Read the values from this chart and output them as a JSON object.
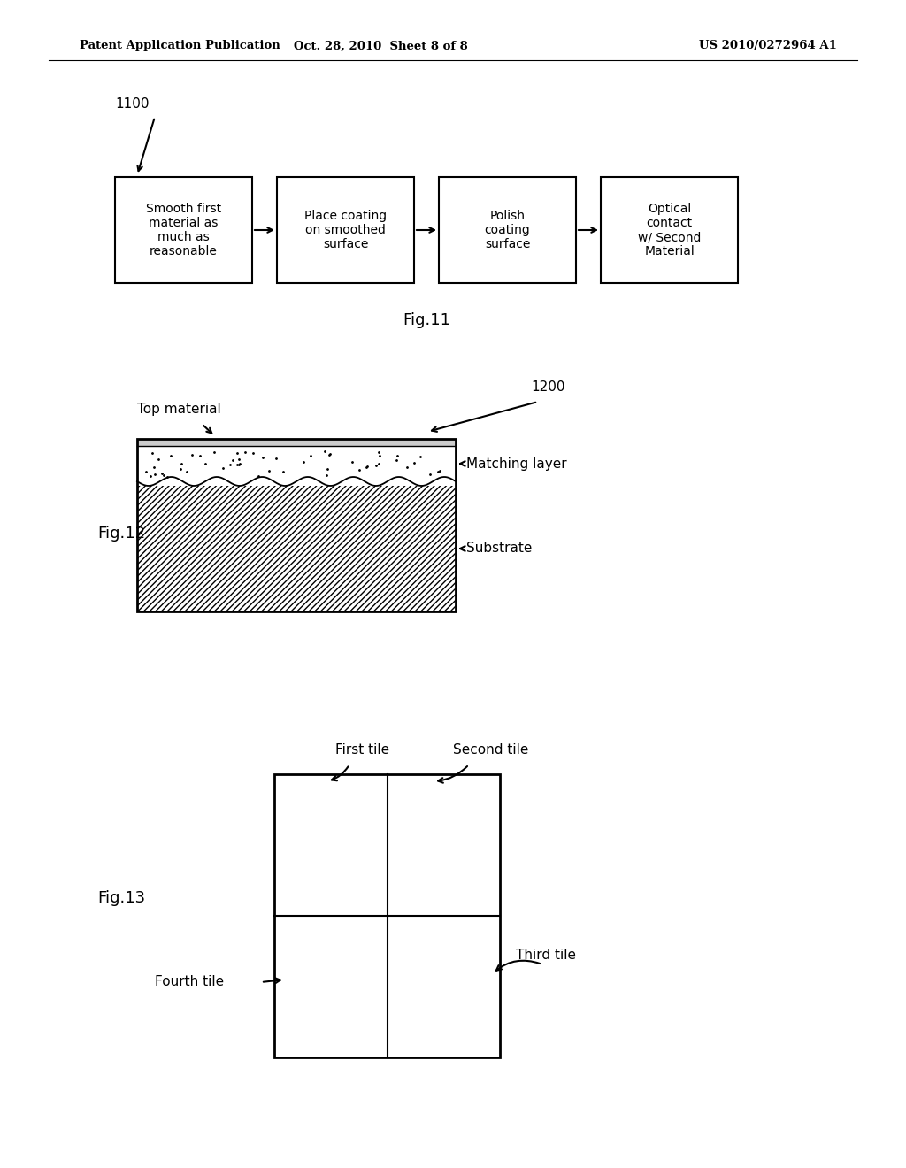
{
  "bg_color": "#ffffff",
  "header_left": "Patent Application Publication",
  "header_center": "Oct. 28, 2010  Sheet 8 of 8",
  "header_right": "US 2010/0272964 A1",
  "fig11_label": "Fig.11",
  "fig11_ref": "1100",
  "fig11_boxes": [
    "Smooth first\nmaterial as\nmuch as\nreasonable",
    "Place coating\non smoothed\nsurface",
    "Polish\ncoating\nsurface",
    "Optical\ncontact\nw/ Second\nMaterial"
  ],
  "fig12_label": "Fig.12",
  "fig12_ref": "1200",
  "fig12_top_material": "Top material",
  "fig12_matching_layer": "Matching layer",
  "fig12_substrate": "Substrate",
  "fig13_label": "Fig.13",
  "fig13_first_tile": "First tile",
  "fig13_second_tile": "Second tile",
  "fig13_third_tile": "Third tile",
  "fig13_fourth_tile": "Fourth tile"
}
